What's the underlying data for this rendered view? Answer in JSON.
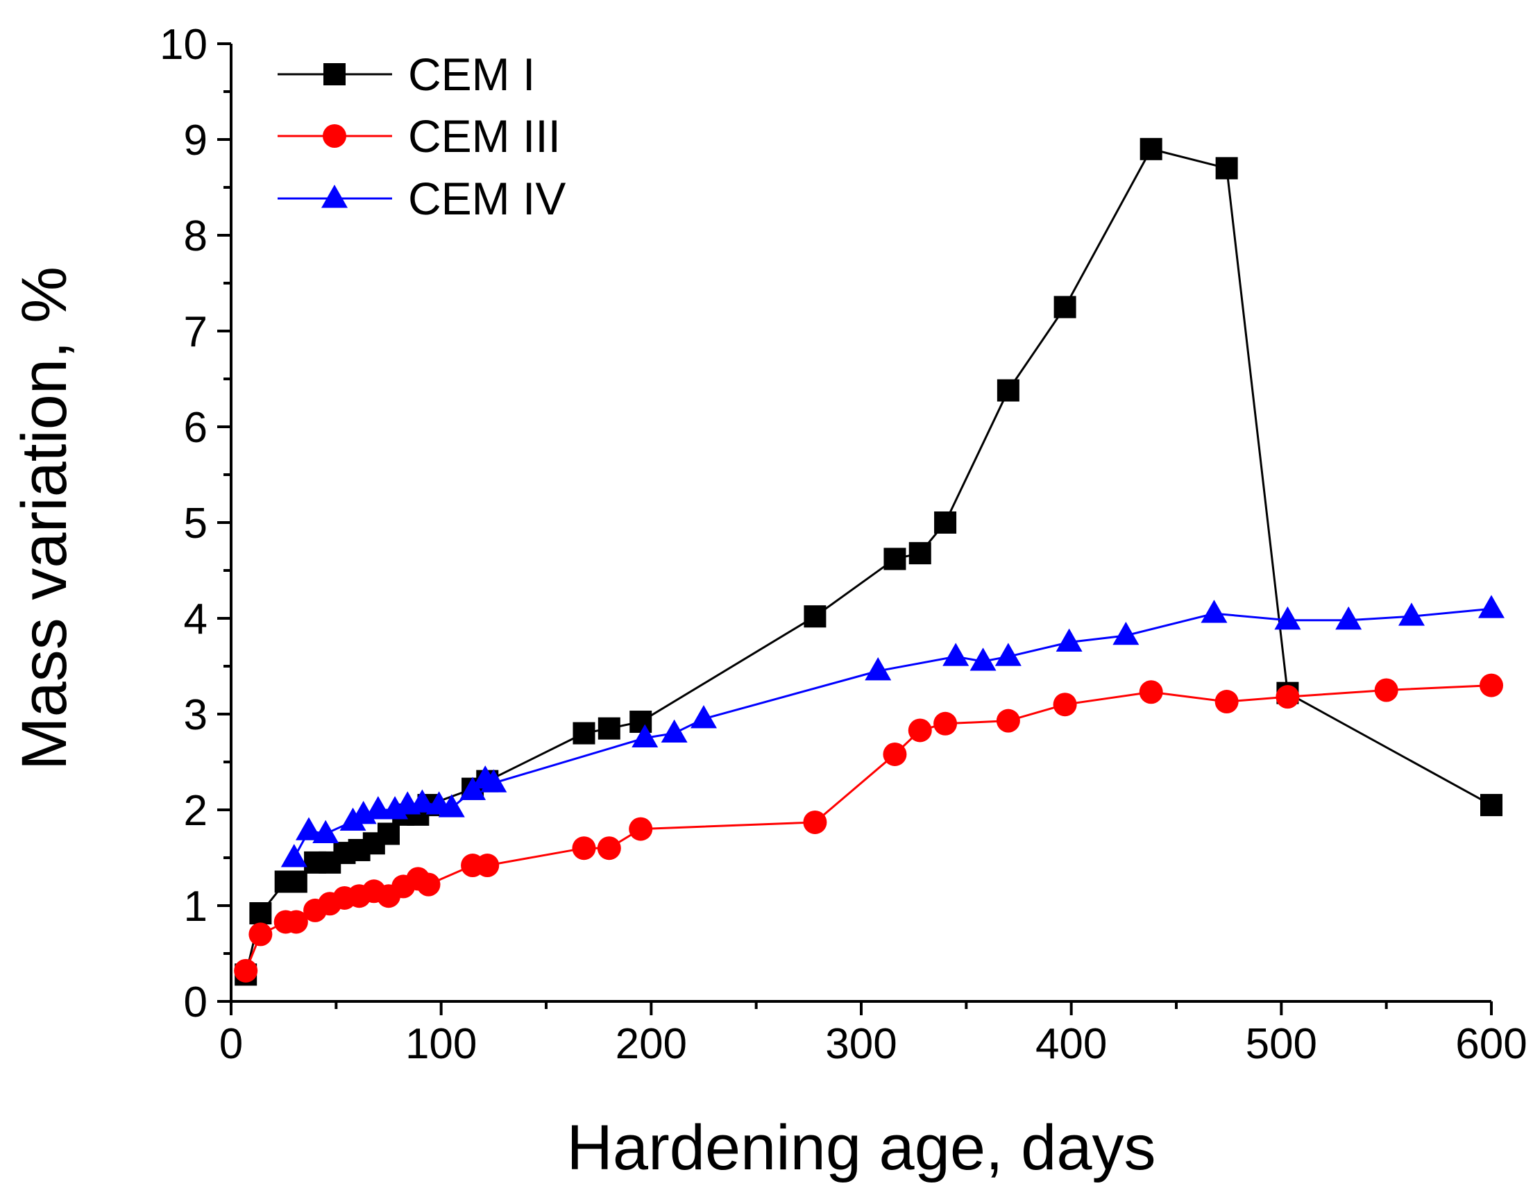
{
  "chart_data": {
    "type": "line",
    "title": "",
    "xlabel": "Hardening age, days",
    "ylabel": "Mass variation, %",
    "xlim": [
      0,
      600
    ],
    "ylim": [
      0,
      10
    ],
    "xticks": [
      0,
      100,
      200,
      300,
      400,
      500,
      600
    ],
    "xtick_labels": [
      "0",
      "100",
      "200",
      "300",
      "400",
      "500",
      "600"
    ],
    "yticks": [
      0,
      1,
      2,
      3,
      4,
      5,
      6,
      7,
      8,
      9,
      10
    ],
    "ytick_labels": [
      "0",
      "1",
      "2",
      "3",
      "4",
      "5",
      "6",
      "7",
      "8",
      "9",
      "10"
    ],
    "grid": false,
    "legend_position": "top-left",
    "series": [
      {
        "name": "CEM I",
        "color": "#000000",
        "marker": "square",
        "x": [
          7,
          14,
          26,
          31,
          40,
          47,
          54,
          61,
          68,
          75,
          82,
          89,
          94,
          115,
          122,
          168,
          180,
          195,
          278,
          316,
          328,
          340,
          370,
          397,
          438,
          474,
          503,
          600
        ],
        "y": [
          0.28,
          0.92,
          1.25,
          1.25,
          1.45,
          1.45,
          1.55,
          1.58,
          1.65,
          1.75,
          1.95,
          1.95,
          2.05,
          2.22,
          2.3,
          2.8,
          2.85,
          2.92,
          4.02,
          4.62,
          4.68,
          5.0,
          6.38,
          7.25,
          8.9,
          8.7,
          3.22,
          2.05
        ]
      },
      {
        "name": "CEM III",
        "color": "#ff0000",
        "marker": "circle",
        "x": [
          7,
          14,
          26,
          31,
          40,
          47,
          54,
          61,
          68,
          75,
          82,
          89,
          94,
          115,
          122,
          168,
          180,
          195,
          278,
          316,
          328,
          340,
          370,
          397,
          438,
          474,
          503,
          550,
          600
        ],
        "y": [
          0.32,
          0.7,
          0.83,
          0.83,
          0.95,
          1.02,
          1.08,
          1.1,
          1.15,
          1.1,
          1.2,
          1.28,
          1.22,
          1.42,
          1.42,
          1.6,
          1.6,
          1.8,
          1.87,
          2.58,
          2.83,
          2.9,
          2.93,
          3.1,
          3.23,
          3.13,
          3.18,
          3.25,
          3.3
        ]
      },
      {
        "name": "CEM IV",
        "color": "#0000ff",
        "marker": "triangle",
        "x": [
          30,
          37,
          45,
          58,
          63,
          70,
          78,
          84,
          91,
          99,
          105,
          115,
          121,
          125,
          197,
          211,
          225,
          308,
          345,
          358,
          370,
          399,
          426,
          468,
          503,
          532,
          562,
          600
        ],
        "y": [
          1.5,
          1.78,
          1.75,
          1.88,
          1.95,
          2.0,
          2.0,
          2.05,
          2.07,
          2.05,
          2.02,
          2.2,
          2.32,
          2.28,
          2.75,
          2.8,
          2.95,
          3.45,
          3.6,
          3.55,
          3.6,
          3.75,
          3.82,
          4.05,
          3.98,
          3.98,
          4.02,
          4.1
        ]
      }
    ]
  }
}
